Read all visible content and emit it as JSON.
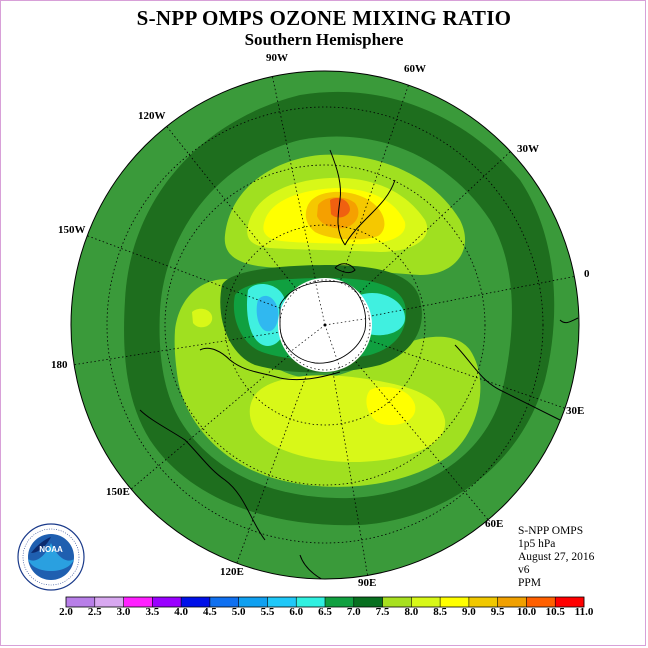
{
  "title": "S-NPP OMPS OZONE MIXING RATIO",
  "subtitle": "Southern Hemisphere",
  "longitude_labels": [
    "90W",
    "60W",
    "120W",
    "30W",
    "150W",
    "0",
    "180",
    "30E",
    "150E",
    "60E",
    "120E",
    "90E"
  ],
  "info": {
    "line1": "S-NPP OMPS",
    "line2": "1p5 hPa",
    "line3": "August 27, 2016",
    "line4": "v6",
    "line5": "PPM"
  },
  "logo_text": "NOAA",
  "colorbar": {
    "ticks": [
      "2.0",
      "2.5",
      "3.0",
      "3.5",
      "4.0",
      "4.5",
      "5.0",
      "5.5",
      "6.0",
      "6.5",
      "7.0",
      "7.5",
      "8.0",
      "8.5",
      "9.0",
      "9.5",
      "10.0",
      "10.5",
      "11.0"
    ],
    "colors": [
      "#b87fe8",
      "#d8a8f0",
      "#ff20ff",
      "#9a00ff",
      "#0010e8",
      "#1070f0",
      "#10a0f0",
      "#20c8f8",
      "#30f0e0",
      "#10a040",
      "#087020",
      "#a8e020",
      "#d8f818",
      "#ffff00",
      "#f0c800",
      "#f0a000",
      "#ff6000",
      "#ff0000",
      "#a00000",
      "#805030"
    ]
  },
  "colors": {
    "ocean_base": "#3a9a3a",
    "dark_green": "#1e6e1e",
    "light_green": "#a0e020",
    "yellow_green": "#d8f818",
    "yellow": "#ffff00",
    "orange": "#f5a000",
    "red_orange": "#f06010",
    "cyan": "#40f0e0",
    "blue": "#30b8f0"
  }
}
